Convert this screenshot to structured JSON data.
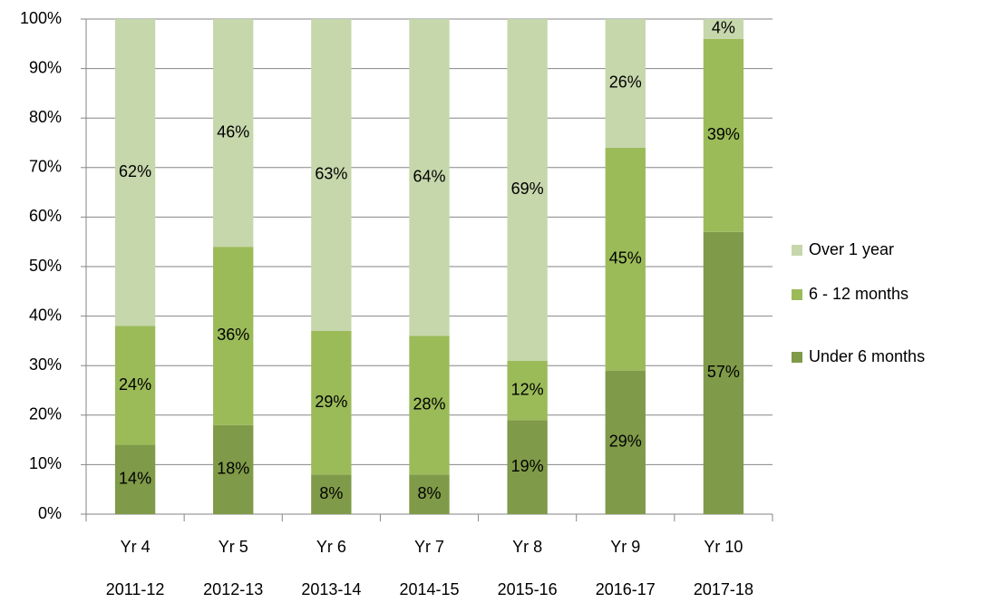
{
  "chart_data": {
    "type": "stacked_bar",
    "categories": [
      "Yr 4",
      "Yr 5",
      "Yr 6",
      "Yr 7",
      "Yr 8",
      "Yr 9",
      "Yr 10"
    ],
    "sub_categories": [
      "2011-12",
      "2012-13",
      "2013-14",
      "2014-15",
      "2015-16",
      "2016-17",
      "2017-18"
    ],
    "series": [
      {
        "name": "Under 6 months",
        "color": "#7f9a48",
        "values": [
          14,
          18,
          8,
          8,
          19,
          29,
          57
        ],
        "value_labels": [
          "14%",
          "18%",
          "8%",
          "8%",
          "19%",
          "29%",
          "57%"
        ]
      },
      {
        "name": "6 - 12 months",
        "color": "#9bbb59",
        "values": [
          24,
          36,
          29,
          28,
          12,
          45,
          39
        ],
        "value_labels": [
          "24%",
          "36%",
          "29%",
          "28%",
          "12%",
          "45%",
          "39%"
        ]
      },
      {
        "name": "Over 1 year",
        "color": "#c6d7ac",
        "values": [
          62,
          46,
          63,
          64,
          69,
          26,
          4
        ],
        "value_labels": [
          "62%",
          "46%",
          "63%",
          "64%",
          "69%",
          "26%",
          "4%"
        ]
      }
    ],
    "ylim": [
      0,
      100
    ],
    "yticks": [
      {
        "value": 0,
        "label": "0%"
      },
      {
        "value": 10,
        "label": "10%"
      },
      {
        "value": 20,
        "label": "20%"
      },
      {
        "value": 30,
        "label": "30%"
      },
      {
        "value": 40,
        "label": "40%"
      },
      {
        "value": 50,
        "label": "50%"
      },
      {
        "value": 60,
        "label": "60%"
      },
      {
        "value": 70,
        "label": "70%"
      },
      {
        "value": 80,
        "label": "80%"
      },
      {
        "value": 90,
        "label": "90%"
      },
      {
        "value": 100,
        "label": "100%"
      }
    ],
    "grid": true,
    "legend": "right"
  }
}
